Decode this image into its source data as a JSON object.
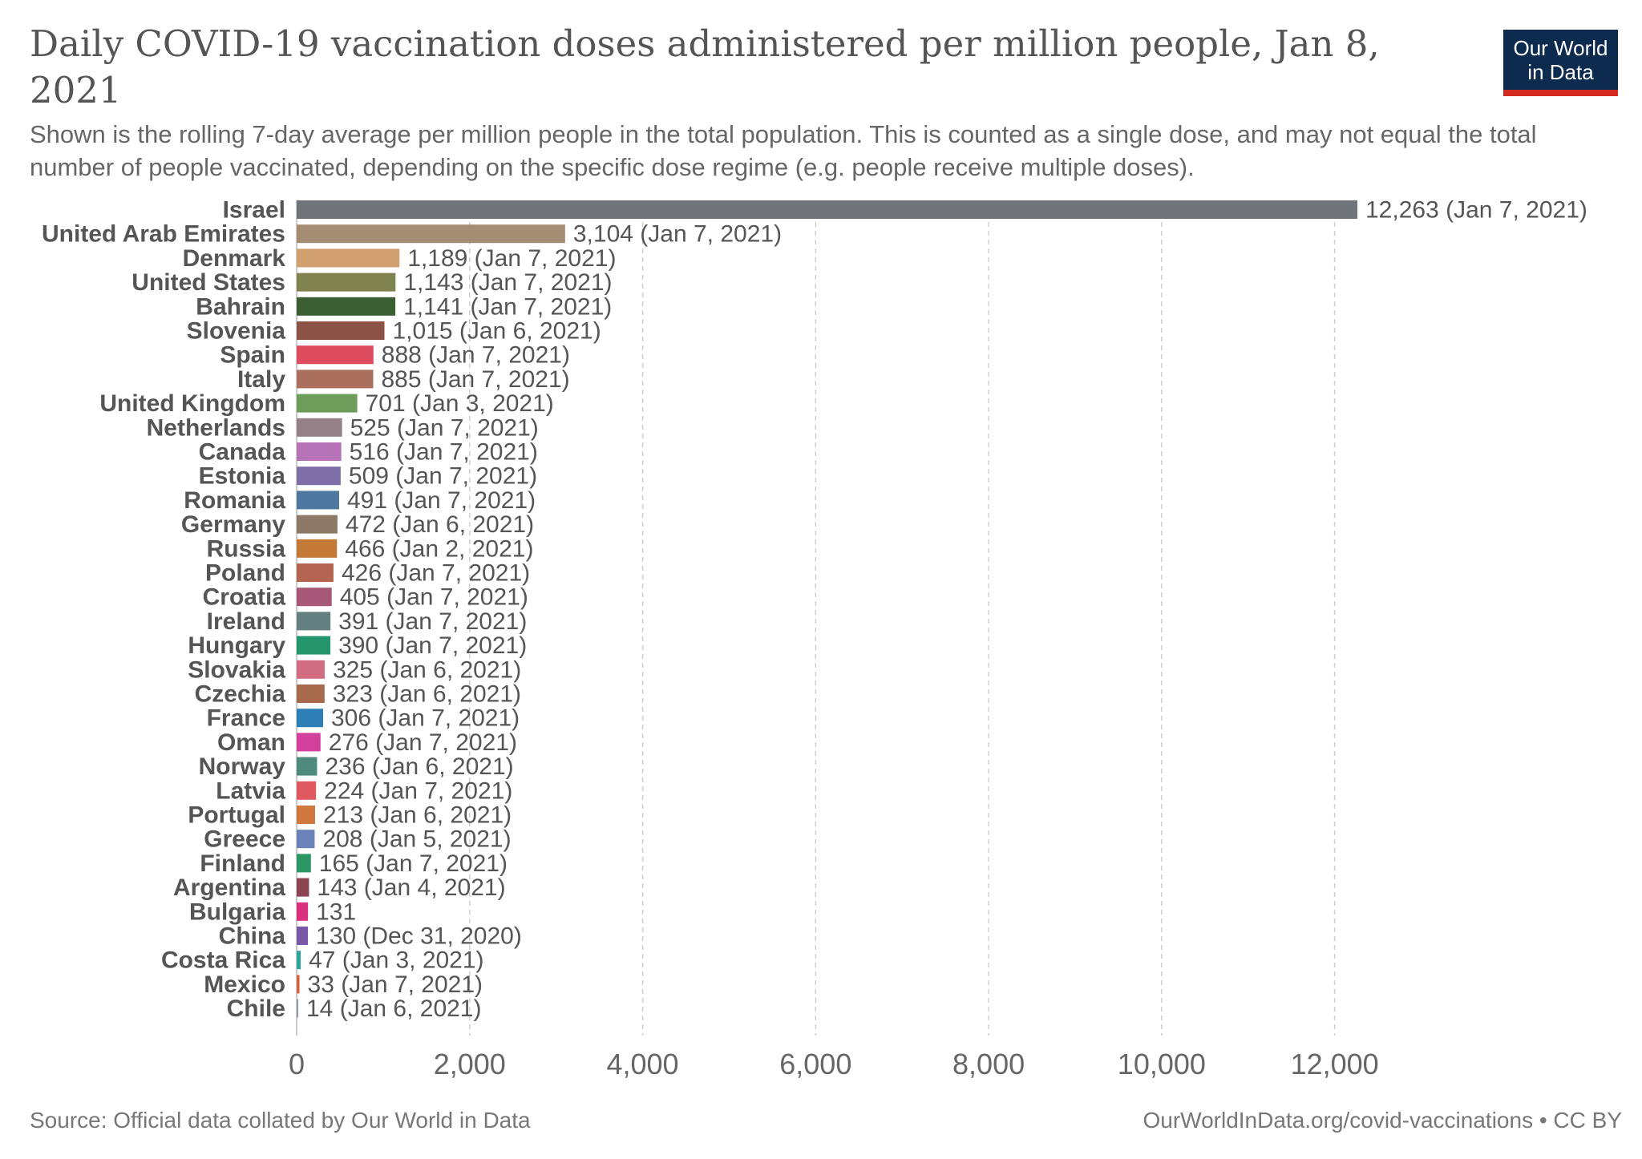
{
  "header": {
    "title": "Daily COVID-19 vaccination doses administered per million people, Jan 8, 2021",
    "subtitle": "Shown is the rolling 7-day average per million people in the total population. This is counted as a single dose, and may not equal the total number of people vaccinated, depending on the specific dose regime (e.g. people receive multiple doses).",
    "logo_line1": "Our World",
    "logo_line2": "in Data",
    "logo_bg": "#0d2a4f",
    "logo_accent": "#d42b21"
  },
  "footer": {
    "source": "Source: Official data collated by Our World in Data",
    "url": "OurWorldInData.org/covid-vaccinations • CC BY"
  },
  "chart_data": {
    "type": "bar",
    "orientation": "horizontal",
    "title": "Daily COVID-19 vaccination doses administered per million people, Jan 8, 2021",
    "xlabel": "",
    "ylabel": "",
    "xlim": [
      0,
      12263
    ],
    "xticks": [
      0,
      2000,
      4000,
      6000,
      8000,
      10000,
      12000
    ],
    "xtick_labels": [
      "0",
      "2,000",
      "4,000",
      "6,000",
      "8,000",
      "10,000",
      "12,000"
    ],
    "grid": "vertical dashed",
    "categories": [
      "Israel",
      "United Arab Emirates",
      "Denmark",
      "United States",
      "Bahrain",
      "Slovenia",
      "Spain",
      "Italy",
      "United Kingdom",
      "Netherlands",
      "Canada",
      "Estonia",
      "Romania",
      "Germany",
      "Russia",
      "Poland",
      "Croatia",
      "Ireland",
      "Hungary",
      "Slovakia",
      "Czechia",
      "France",
      "Oman",
      "Norway",
      "Latvia",
      "Portugal",
      "Greece",
      "Finland",
      "Argentina",
      "Bulgaria",
      "China",
      "Costa Rica",
      "Mexico",
      "Chile"
    ],
    "values": [
      12263,
      3104,
      1189,
      1143,
      1141,
      1015,
      888,
      885,
      701,
      525,
      516,
      509,
      491,
      472,
      466,
      426,
      405,
      391,
      390,
      325,
      323,
      306,
      276,
      236,
      224,
      213,
      208,
      165,
      143,
      131,
      130,
      47,
      33,
      14
    ],
    "value_labels": [
      "12,263 (Jan 7, 2021)",
      "3,104 (Jan 7, 2021)",
      "1,189 (Jan 7, 2021)",
      "1,143 (Jan 7, 2021)",
      "1,141 (Jan 7, 2021)",
      "1,015 (Jan 6, 2021)",
      "888 (Jan 7, 2021)",
      "885 (Jan 7, 2021)",
      "701 (Jan 3, 2021)",
      "525 (Jan 7, 2021)",
      "516 (Jan 7, 2021)",
      "509 (Jan 7, 2021)",
      "491 (Jan 7, 2021)",
      "472 (Jan 6, 2021)",
      "466 (Jan 2, 2021)",
      "426 (Jan 7, 2021)",
      "405 (Jan 7, 2021)",
      "391 (Jan 7, 2021)",
      "390 (Jan 7, 2021)",
      "325 (Jan 6, 2021)",
      "323 (Jan 6, 2021)",
      "306 (Jan 7, 2021)",
      "276 (Jan 7, 2021)",
      "236 (Jan 6, 2021)",
      "224 (Jan 7, 2021)",
      "213 (Jan 6, 2021)",
      "208 (Jan 5, 2021)",
      "165 (Jan 7, 2021)",
      "143 (Jan 4, 2021)",
      "131",
      "130 (Dec 31, 2020)",
      "47 (Jan 3, 2021)",
      "33 (Jan 7, 2021)",
      "14 (Jan 6, 2021)"
    ],
    "colors": [
      "#6e747a",
      "#a58d73",
      "#d2a06e",
      "#7f8350",
      "#3b5e32",
      "#8b5245",
      "#dd4b5e",
      "#ab6f5e",
      "#6e9c5a",
      "#968088",
      "#b673b8",
      "#7f6fa8",
      "#4f78a0",
      "#8c7a66",
      "#c27a36",
      "#b36552",
      "#a75876",
      "#637f80",
      "#25956e",
      "#d26e84",
      "#a86a4c",
      "#2d7fb5",
      "#d23f9c",
      "#4f8a7e",
      "#df5a60",
      "#cf7840",
      "#6a82b8",
      "#2c9664",
      "#8b4552",
      "#d9317f",
      "#7c58a8",
      "#2fa39e",
      "#d5643d",
      "#8f9ba8"
    ]
  }
}
